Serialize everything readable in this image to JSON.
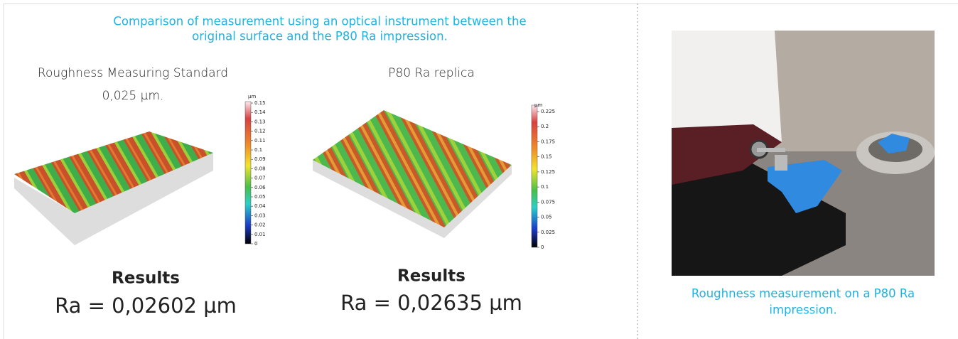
{
  "caption": [
    "Comparison of measurement using an optical instrument between the",
    "original surface and the P80 Ra impression."
  ],
  "panels": [
    {
      "title": [
        "Roughness Measuring Standard",
        "0,025 µm."
      ],
      "colorbar": {
        "unit": "µm",
        "ticks": [
          "0.15",
          "0.14",
          "0.13",
          "0.12",
          "0.11",
          "0.1",
          "0.09",
          "0.08",
          "0.07",
          "0.06",
          "0.05",
          "0.04",
          "0.03",
          "0.02",
          "0.01",
          "0"
        ]
      },
      "results_heading": "Results",
      "result": "Ra = 0,02602 µm"
    },
    {
      "title": [
        "P80 Ra replica"
      ],
      "colorbar": {
        "unit": "µm",
        "ticks": [
          "0.225",
          "0.2",
          "0.175",
          "0.15",
          "0.125",
          "0.1",
          "0.075",
          "0.05",
          "0.025",
          "0"
        ]
      },
      "results_heading": "Results",
      "result": "Ra = 0,02635 µm"
    }
  ],
  "photo_caption": [
    "Roughness measurement on a P80 Ra",
    "impression."
  ]
}
